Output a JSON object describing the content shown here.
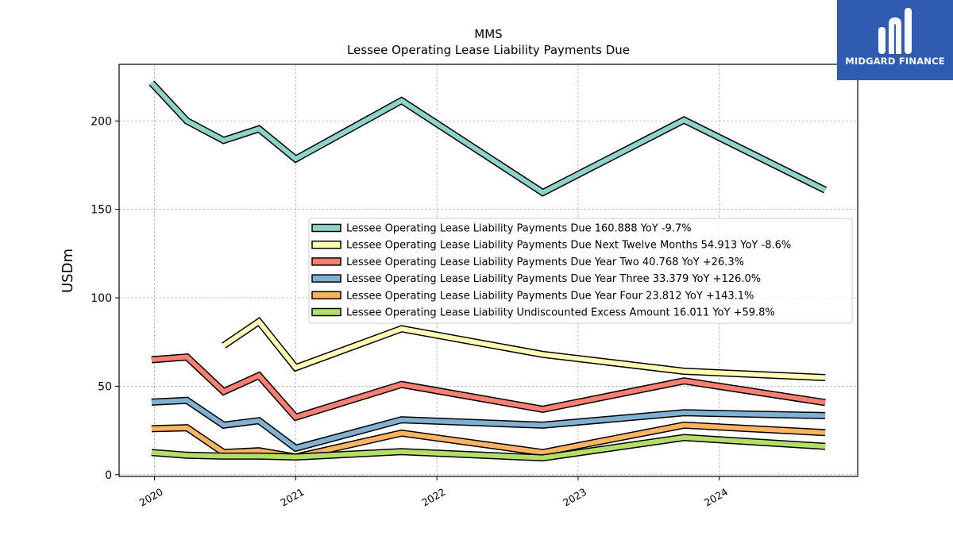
{
  "chart_data": {
    "type": "line",
    "title": "MMS",
    "subtitle": "Lessee Operating Lease Liability Payments Due",
    "ylabel": "USDm",
    "xlabel": "",
    "xlim": [
      2019.75,
      2024.98
    ],
    "ylim": [
      -1,
      232
    ],
    "yticks": [
      0,
      50,
      100,
      150,
      200
    ],
    "xticks": [
      2020,
      2021,
      2022,
      2023,
      2024
    ],
    "grid": true,
    "legend_position": "center-right",
    "series": [
      {
        "name": "Lessee Operating Lease Liability Payments Due",
        "legend": "Lessee Operating Lease Liability Payments Due  160.888 YoY -9.7%",
        "color": "#8dd3c7",
        "points": [
          [
            2019.98,
            221.5
          ],
          [
            2020.23,
            200
          ],
          [
            2020.49,
            189
          ],
          [
            2020.74,
            195.5
          ],
          [
            2021.0,
            178.5
          ],
          [
            2021.75,
            211.5
          ],
          [
            2022.75,
            159.5
          ],
          [
            2023.75,
            200.5
          ],
          [
            2024.75,
            160.9
          ]
        ]
      },
      {
        "name": "Lessee Operating Lease Liability Payments Due Next Twelve Months",
        "legend": "Lessee Operating Lease Liability Payments Due Next Twelve Months  54.913 YoY -8.6%",
        "color": "#ffffb3",
        "points": [
          [
            2020.49,
            73
          ],
          [
            2020.74,
            86.5
          ],
          [
            2021.0,
            60.5
          ],
          [
            2021.75,
            82.5
          ],
          [
            2022.75,
            68
          ],
          [
            2023.75,
            58.5
          ],
          [
            2024.75,
            54.9
          ]
        ]
      },
      {
        "name": "Lessee Operating Lease Liability Payments Due Year Two",
        "legend": "Lessee Operating Lease Liability Payments Due Year Two  40.768 YoY +26.3%",
        "color": "#fb8072",
        "points": [
          [
            2019.98,
            65
          ],
          [
            2020.23,
            66.5
          ],
          [
            2020.49,
            47
          ],
          [
            2020.74,
            56
          ],
          [
            2021.0,
            32.5
          ],
          [
            2021.75,
            51
          ],
          [
            2022.75,
            37
          ],
          [
            2023.75,
            53
          ],
          [
            2024.75,
            40.8
          ]
        ]
      },
      {
        "name": "Lessee Operating Lease Liability Payments Due Year Three",
        "legend": "Lessee Operating Lease Liability Payments Due Year Three  33.379 YoY +126.0%",
        "color": "#80b1d3",
        "points": [
          [
            2019.98,
            41
          ],
          [
            2020.23,
            42
          ],
          [
            2020.49,
            28
          ],
          [
            2020.74,
            30.5
          ],
          [
            2021.0,
            15
          ],
          [
            2021.75,
            31
          ],
          [
            2022.75,
            28
          ],
          [
            2023.75,
            35
          ],
          [
            2024.75,
            33.4
          ]
        ]
      },
      {
        "name": "Lessee Operating Lease Liability Payments Due Year Four",
        "legend": "Lessee Operating Lease Liability Payments Due Year Four  23.812 YoY +143.1%",
        "color": "#fdb462",
        "points": [
          [
            2019.98,
            26
          ],
          [
            2020.23,
            26.5
          ],
          [
            2020.49,
            12.5
          ],
          [
            2020.74,
            13.5
          ],
          [
            2021.0,
            10
          ],
          [
            2021.75,
            23.5
          ],
          [
            2022.75,
            12.5
          ],
          [
            2023.75,
            28
          ],
          [
            2024.75,
            23.8
          ]
        ]
      },
      {
        "name": "Lessee Operating Lease Liability Undiscounted Excess Amount",
        "legend": "Lessee Operating Lease Liability Undiscounted Excess Amount  16.011 YoY +59.8%",
        "color": "#b3de69",
        "points": [
          [
            2019.98,
            12.5
          ],
          [
            2020.23,
            11
          ],
          [
            2020.49,
            10.5
          ],
          [
            2020.74,
            10.5
          ],
          [
            2021.0,
            10
          ],
          [
            2021.75,
            13
          ],
          [
            2022.75,
            9.5
          ],
          [
            2023.75,
            21
          ],
          [
            2024.75,
            16
          ]
        ]
      }
    ]
  },
  "logo": {
    "text": "MIDGARD FINANCE"
  }
}
